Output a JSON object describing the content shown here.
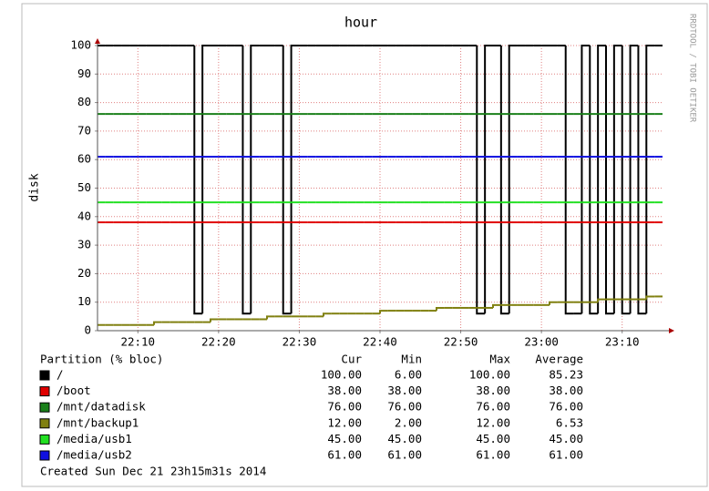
{
  "chart_data": {
    "type": "step",
    "title": "hour",
    "y_label": "disk",
    "side_text": "RRDTOOL / TOBI OETIKER",
    "x": [
      1325,
      1326,
      1327,
      1328,
      1329,
      1330,
      1331,
      1332,
      1333,
      1334,
      1335,
      1336,
      1337,
      1338,
      1339,
      1340,
      1341,
      1342,
      1343,
      1344,
      1345,
      1346,
      1347,
      1348,
      1349,
      1350,
      1351,
      1352,
      1353,
      1354,
      1355,
      1356,
      1357,
      1358,
      1359,
      1360,
      1361,
      1362,
      1363,
      1364,
      1365,
      1366,
      1367,
      1368,
      1369,
      1370,
      1371,
      1372,
      1373,
      1374,
      1375,
      1376,
      1377,
      1378,
      1379,
      1380,
      1381,
      1382,
      1383,
      1384,
      1385,
      1386,
      1387,
      1388,
      1389,
      1390,
      1391,
      1392,
      1393,
      1394
    ],
    "xlim": [
      1325,
      1395
    ],
    "xticks": [
      {
        "value": 1330,
        "label": "22:10"
      },
      {
        "value": 1340,
        "label": "22:20"
      },
      {
        "value": 1350,
        "label": "22:30"
      },
      {
        "value": 1360,
        "label": "22:40"
      },
      {
        "value": 1370,
        "label": "22:50"
      },
      {
        "value": 1380,
        "label": "23:00"
      },
      {
        "value": 1390,
        "label": "23:10"
      }
    ],
    "ylim": [
      0,
      100
    ],
    "yticks": [
      0,
      10,
      20,
      30,
      40,
      50,
      60,
      70,
      80,
      90,
      100
    ],
    "grid": true,
    "series": [
      {
        "name": "/",
        "color": "#000000",
        "values": [
          100,
          100,
          100,
          100,
          100,
          100,
          100,
          100,
          100,
          100,
          100,
          100,
          6,
          100,
          100,
          100,
          100,
          100,
          6,
          100,
          100,
          100,
          100,
          6,
          100,
          100,
          100,
          100,
          100,
          100,
          100,
          100,
          100,
          100,
          100,
          100,
          100,
          100,
          100,
          100,
          100,
          100,
          100,
          100,
          100,
          100,
          100,
          6,
          100,
          100,
          6,
          100,
          100,
          100,
          100,
          100,
          100,
          100,
          6,
          6,
          100,
          6,
          100,
          6,
          100,
          6,
          100,
          6,
          100,
          100
        ]
      },
      {
        "name": "/boot",
        "color": "#e00000",
        "values": [
          38,
          38,
          38,
          38,
          38,
          38,
          38,
          38,
          38,
          38,
          38,
          38,
          38,
          38,
          38,
          38,
          38,
          38,
          38,
          38,
          38,
          38,
          38,
          38,
          38,
          38,
          38,
          38,
          38,
          38,
          38,
          38,
          38,
          38,
          38,
          38,
          38,
          38,
          38,
          38,
          38,
          38,
          38,
          38,
          38,
          38,
          38,
          38,
          38,
          38,
          38,
          38,
          38,
          38,
          38,
          38,
          38,
          38,
          38,
          38,
          38,
          38,
          38,
          38,
          38,
          38,
          38,
          38,
          38,
          38
        ]
      },
      {
        "name": "/mnt/datadisk",
        "color": "#1a801a",
        "values": [
          76,
          76,
          76,
          76,
          76,
          76,
          76,
          76,
          76,
          76,
          76,
          76,
          76,
          76,
          76,
          76,
          76,
          76,
          76,
          76,
          76,
          76,
          76,
          76,
          76,
          76,
          76,
          76,
          76,
          76,
          76,
          76,
          76,
          76,
          76,
          76,
          76,
          76,
          76,
          76,
          76,
          76,
          76,
          76,
          76,
          76,
          76,
          76,
          76,
          76,
          76,
          76,
          76,
          76,
          76,
          76,
          76,
          76,
          76,
          76,
          76,
          76,
          76,
          76,
          76,
          76,
          76,
          76,
          76,
          76
        ]
      },
      {
        "name": "/mnt/backup1",
        "color": "#808010",
        "values": [
          2,
          2,
          2,
          2,
          2,
          2,
          2,
          3,
          3,
          3,
          3,
          3,
          3,
          3,
          4,
          4,
          4,
          4,
          4,
          4,
          4,
          5,
          5,
          5,
          5,
          5,
          5,
          5,
          6,
          6,
          6,
          6,
          6,
          6,
          6,
          7,
          7,
          7,
          7,
          7,
          7,
          7,
          8,
          8,
          8,
          8,
          8,
          8,
          8,
          9,
          9,
          9,
          9,
          9,
          9,
          9,
          10,
          10,
          10,
          10,
          10,
          10,
          11,
          11,
          11,
          11,
          11,
          11,
          12,
          12
        ]
      },
      {
        "name": "/media/usb1",
        "color": "#22e022",
        "values": [
          45,
          45,
          45,
          45,
          45,
          45,
          45,
          45,
          45,
          45,
          45,
          45,
          45,
          45,
          45,
          45,
          45,
          45,
          45,
          45,
          45,
          45,
          45,
          45,
          45,
          45,
          45,
          45,
          45,
          45,
          45,
          45,
          45,
          45,
          45,
          45,
          45,
          45,
          45,
          45,
          45,
          45,
          45,
          45,
          45,
          45,
          45,
          45,
          45,
          45,
          45,
          45,
          45,
          45,
          45,
          45,
          45,
          45,
          45,
          45,
          45,
          45,
          45,
          45,
          45,
          45,
          45,
          45,
          45,
          45
        ]
      },
      {
        "name": "/media/usb2",
        "color": "#1010e0",
        "values": [
          61,
          61,
          61,
          61,
          61,
          61,
          61,
          61,
          61,
          61,
          61,
          61,
          61,
          61,
          61,
          61,
          61,
          61,
          61,
          61,
          61,
          61,
          61,
          61,
          61,
          61,
          61,
          61,
          61,
          61,
          61,
          61,
          61,
          61,
          61,
          61,
          61,
          61,
          61,
          61,
          61,
          61,
          61,
          61,
          61,
          61,
          61,
          61,
          61,
          61,
          61,
          61,
          61,
          61,
          61,
          61,
          61,
          61,
          61,
          61,
          61,
          61,
          61,
          61,
          61,
          61,
          61,
          61,
          61,
          61
        ]
      }
    ],
    "legend": {
      "title": "Partition (% bloc)",
      "columns": [
        "Cur",
        "Min",
        "Max",
        "Average"
      ],
      "rows": [
        [
          "100.00",
          "6.00",
          "100.00",
          "85.23"
        ],
        [
          "38.00",
          "38.00",
          "38.00",
          "38.00"
        ],
        [
          "76.00",
          "76.00",
          "76.00",
          "76.00"
        ],
        [
          "12.00",
          "2.00",
          "12.00",
          "6.53"
        ],
        [
          "45.00",
          "45.00",
          "45.00",
          "45.00"
        ],
        [
          "61.00",
          "61.00",
          "61.00",
          "61.00"
        ]
      ]
    },
    "footer": "Created Sun Dec 21 23h15m31s 2014"
  }
}
